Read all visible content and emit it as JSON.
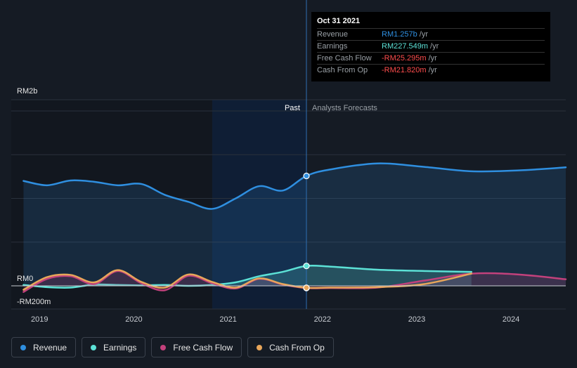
{
  "tooltip": {
    "date": "Oct 31 2021",
    "rows": [
      {
        "label": "Revenue",
        "value": "RM1.257b",
        "unit": "/yr",
        "color": "#2f8fe0"
      },
      {
        "label": "Earnings",
        "value": "RM227.549m",
        "unit": "/yr",
        "color": "#5ce1d6"
      },
      {
        "label": "Free Cash Flow",
        "value": "-RM25.295m",
        "unit": "/yr",
        "color": "#ff4d4d"
      },
      {
        "label": "Cash From Op",
        "value": "-RM21.820m",
        "unit": "/yr",
        "color": "#ff4d4d"
      }
    ]
  },
  "legend": [
    {
      "label": "Revenue",
      "color": "#2f8fe0"
    },
    {
      "label": "Earnings",
      "color": "#5ce1d6"
    },
    {
      "label": "Free Cash Flow",
      "color": "#c2417c"
    },
    {
      "label": "Cash From Op",
      "color": "#e8a65a"
    }
  ],
  "chart_data": {
    "type": "line",
    "y_unit": "RM m",
    "y_tick_labels": [
      {
        "value": 2000,
        "label": "RM2b"
      },
      {
        "value": 0,
        "label": "RM0"
      },
      {
        "value": -200,
        "label": "-RM200m"
      }
    ],
    "ylim": [
      -250,
      2000
    ],
    "xlim": [
      2018.7,
      2024.58
    ],
    "x_tick_labels": [
      "2019",
      "2020",
      "2021",
      "2022",
      "2023",
      "2024"
    ],
    "x_ticks": [
      2019,
      2020,
      2021,
      2022,
      2023,
      2024
    ],
    "past_label": "Past",
    "forecast_label": "Analysts Forecasts",
    "past_start": 2020.83,
    "divider": 2021.83,
    "grid": true,
    "series": [
      {
        "name": "Revenue",
        "color": "#2f8fe0",
        "area": true,
        "points": [
          [
            2018.83,
            1200
          ],
          [
            2019.08,
            1150
          ],
          [
            2019.33,
            1205
          ],
          [
            2019.58,
            1190
          ],
          [
            2019.83,
            1150
          ],
          [
            2020.08,
            1165
          ],
          [
            2020.33,
            1040
          ],
          [
            2020.58,
            960
          ],
          [
            2020.83,
            880
          ],
          [
            2021.08,
            1000
          ],
          [
            2021.33,
            1140
          ],
          [
            2021.58,
            1090
          ],
          [
            2021.83,
            1257
          ],
          [
            2022.08,
            1330
          ],
          [
            2022.58,
            1400
          ],
          [
            2023.08,
            1360
          ],
          [
            2023.58,
            1310
          ],
          [
            2024.08,
            1320
          ],
          [
            2024.58,
            1355
          ]
        ]
      },
      {
        "name": "Earnings",
        "color": "#5ce1d6",
        "area": true,
        "points": [
          [
            2018.83,
            10
          ],
          [
            2019.08,
            -15
          ],
          [
            2019.33,
            -20
          ],
          [
            2019.58,
            15
          ],
          [
            2019.83,
            10
          ],
          [
            2020.08,
            5
          ],
          [
            2020.33,
            10
          ],
          [
            2020.58,
            0
          ],
          [
            2020.83,
            10
          ],
          [
            2021.08,
            40
          ],
          [
            2021.33,
            110
          ],
          [
            2021.58,
            160
          ],
          [
            2021.83,
            227.549
          ],
          [
            2022.08,
            220
          ],
          [
            2022.58,
            185
          ],
          [
            2023.08,
            170
          ],
          [
            2023.58,
            160
          ]
        ]
      },
      {
        "name": "Free Cash Flow",
        "color": "#c2417c",
        "area": true,
        "points": [
          [
            2018.83,
            -70
          ],
          [
            2019.08,
            80
          ],
          [
            2019.33,
            110
          ],
          [
            2019.58,
            20
          ],
          [
            2019.83,
            170
          ],
          [
            2020.08,
            30
          ],
          [
            2020.33,
            -50
          ],
          [
            2020.58,
            115
          ],
          [
            2020.83,
            30
          ],
          [
            2021.08,
            -30
          ],
          [
            2021.33,
            80
          ],
          [
            2021.58,
            15
          ],
          [
            2021.83,
            -25.295
          ],
          [
            2022.08,
            -25
          ],
          [
            2022.58,
            -20
          ],
          [
            2023.08,
            60
          ],
          [
            2023.58,
            140
          ],
          [
            2024.08,
            130
          ],
          [
            2024.58,
            75
          ]
        ]
      },
      {
        "name": "Cash From Op",
        "color": "#e8a65a",
        "area": false,
        "points": [
          [
            2018.83,
            -45
          ],
          [
            2019.08,
            100
          ],
          [
            2019.33,
            125
          ],
          [
            2019.58,
            40
          ],
          [
            2019.83,
            180
          ],
          [
            2020.08,
            45
          ],
          [
            2020.33,
            -20
          ],
          [
            2020.58,
            130
          ],
          [
            2020.83,
            45
          ],
          [
            2021.08,
            -20
          ],
          [
            2021.33,
            85
          ],
          [
            2021.58,
            20
          ],
          [
            2021.83,
            -21.82
          ],
          [
            2022.08,
            -20
          ],
          [
            2022.58,
            -15
          ],
          [
            2023.08,
            20
          ],
          [
            2023.58,
            140
          ]
        ]
      }
    ]
  }
}
